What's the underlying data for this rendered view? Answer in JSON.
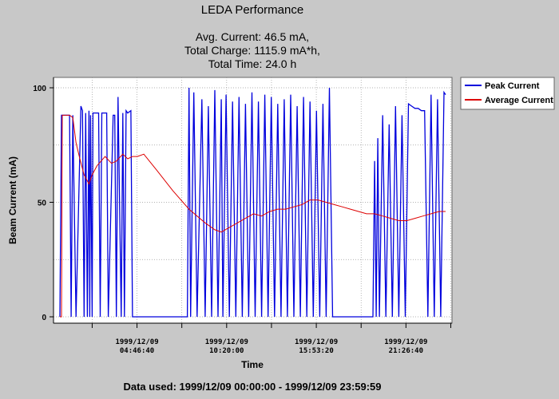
{
  "header": {
    "title": "LEDA Performance",
    "avg_current": "Avg. Current:  46.5 mA,",
    "total_charge": "Total Charge: 1115.9 mA*h,",
    "total_time": "Total Time:   24.0 h"
  },
  "footer": {
    "data_used": "Data used: 1999/12/09 00:00:00 - 1999/12/09 23:59:59"
  },
  "colors": {
    "peak": "#0000dd",
    "average": "#dd0000",
    "plot_bg": "#ffffff",
    "page_bg": "#c8c8c8"
  },
  "chart_data": {
    "type": "line",
    "xlabel": "Time",
    "ylabel": "Beam Current (mA)",
    "xlim": [
      0,
      24
    ],
    "ylim": [
      0,
      100
    ],
    "yticks": [
      0,
      50,
      100
    ],
    "grid": true,
    "legend_position": "top-right",
    "xticks": [
      {
        "x": 4.778,
        "date": "1999/12/09",
        "time": "04:46:40"
      },
      {
        "x": 10.333,
        "date": "1999/12/09",
        "time": "10:20:00"
      },
      {
        "x": 15.889,
        "date": "1999/12/09",
        "time": "15:53:20"
      },
      {
        "x": 21.444,
        "date": "1999/12/09",
        "time": "21:26:40"
      }
    ],
    "series": [
      {
        "name": "Peak Current",
        "x": [
          0,
          0.1,
          0.2,
          0.6,
          0.7,
          0.8,
          1.0,
          1.3,
          1.4,
          1.5,
          1.6,
          1.7,
          1.8,
          1.85,
          1.9,
          2.0,
          2.05,
          2.1,
          2.3,
          2.4,
          2.5,
          2.6,
          2.9,
          3.0,
          3.3,
          3.4,
          3.5,
          3.6,
          3.8,
          3.9,
          4.0,
          4.1,
          4.2,
          4.4,
          4.5,
          4.6,
          4.7,
          4.8,
          4.85,
          4.9,
          5.0,
          5.1,
          5.2,
          7.9,
          8.0,
          8.1,
          8.3,
          8.5,
          8.8,
          9.0,
          9.2,
          9.4,
          9.6,
          9.8,
          10.0,
          10.1,
          10.3,
          10.5,
          10.7,
          10.9,
          11.1,
          11.3,
          11.5,
          11.7,
          11.9,
          12.1,
          12.3,
          12.5,
          12.7,
          12.9,
          13.1,
          13.3,
          13.5,
          13.7,
          13.9,
          14.1,
          14.3,
          14.5,
          14.7,
          14.9,
          15.1,
          15.3,
          15.5,
          15.7,
          15.9,
          16.1,
          16.3,
          16.5,
          16.7,
          16.9,
          17.1,
          17.3,
          17.4,
          17.6,
          17.8,
          18.0,
          18.2,
          18.4,
          18.6,
          18.8,
          19.0,
          19.2,
          19.4,
          19.5,
          19.6,
          19.7,
          19.8,
          20.0,
          20.2,
          20.4,
          20.6,
          20.8,
          21.0,
          21.2,
          21.4,
          21.6,
          21.8,
          22.0,
          22.2,
          22.4,
          22.6,
          22.8,
          23.0,
          23.2,
          23.4,
          23.6,
          23.8,
          23.9
        ],
        "values": [
          0,
          88,
          88,
          88,
          0,
          88,
          0,
          92,
          90,
          0,
          89,
          0,
          90,
          0,
          88,
          0,
          89,
          89,
          89,
          89,
          0,
          89,
          89,
          0,
          88,
          88,
          0,
          96,
          0,
          89,
          0,
          90,
          89,
          90,
          0,
          0,
          0,
          0,
          0,
          0,
          0,
          0,
          0,
          0,
          100,
          0,
          98,
          0,
          95,
          0,
          92,
          0,
          99,
          0,
          95,
          0,
          97,
          0,
          94,
          0,
          96,
          0,
          93,
          0,
          98,
          0,
          94,
          0,
          97,
          0,
          96,
          0,
          93,
          0,
          95,
          0,
          97,
          0,
          92,
          0,
          96,
          0,
          94,
          0,
          90,
          0,
          93,
          0,
          100,
          0,
          0,
          0,
          0,
          0,
          0,
          0,
          0,
          0,
          0,
          0,
          0,
          0,
          0,
          68,
          0,
          78,
          0,
          88,
          0,
          84,
          0,
          92,
          0,
          88,
          0,
          93,
          92,
          91,
          91,
          90,
          90,
          0,
          97,
          0,
          95,
          0,
          98,
          97
        ]
      },
      {
        "name": "Average Current",
        "x": [
          0,
          0.1,
          0.15,
          0.3,
          0.6,
          0.8,
          1.0,
          1.2,
          1.5,
          1.8,
          2.0,
          2.3,
          2.8,
          3.2,
          3.5,
          3.9,
          4.2,
          4.5,
          4.8,
          5.2,
          6.0,
          7.0,
          8.0,
          9.0,
          9.6,
          10.0,
          10.5,
          11.0,
          11.5,
          12.0,
          12.5,
          13.0,
          13.5,
          14.0,
          14.5,
          15.0,
          15.5,
          16.0,
          16.5,
          17.0,
          17.5,
          18.0,
          18.5,
          19.0,
          19.5,
          20.0,
          20.5,
          21.0,
          21.5,
          22.0,
          22.5,
          23.0,
          23.5,
          23.9
        ],
        "values": [
          0,
          0,
          88,
          88,
          88,
          87,
          76,
          70,
          62,
          58,
          62,
          66,
          70,
          67,
          68,
          71,
          69,
          70,
          70,
          71,
          64,
          55,
          47,
          41,
          38,
          37,
          39,
          41,
          43,
          45,
          44,
          46,
          47,
          47,
          48,
          49,
          51,
          51,
          50,
          49,
          48,
          47,
          46,
          45,
          45,
          44,
          43,
          42,
          42,
          43,
          44,
          45,
          46,
          46
        ]
      }
    ]
  }
}
